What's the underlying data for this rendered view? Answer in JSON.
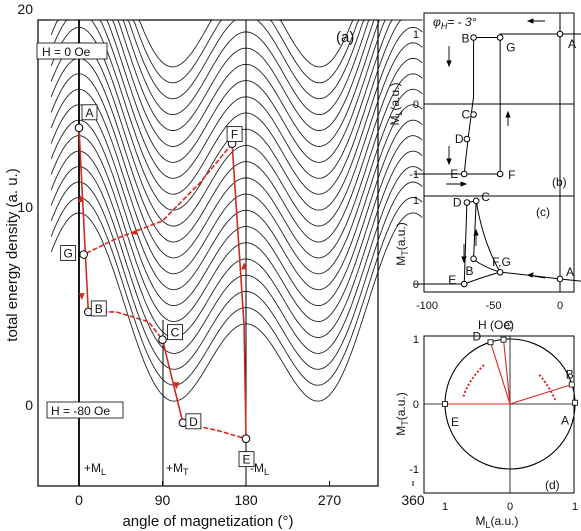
{
  "panel_a": {
    "tag": "(a)",
    "xlabel": "angle of magnetization (°)",
    "ylabel": "total energy density (a. u.)",
    "xticks": [
      "0",
      "90",
      "180",
      "270",
      "360"
    ],
    "yticks": [
      "0",
      "10",
      "20"
    ],
    "top_field_label": "H = 0 Oe",
    "bottom_field_label": "H = -80 Oe",
    "axis_marks": [
      "+M",
      "+M",
      "-M"
    ],
    "axis_mark_subs": [
      "L",
      "T",
      "L"
    ]
  },
  "panel_b": {
    "tag": "(b)",
    "angle_label": "φ",
    "angle_sub": "H",
    "angle_value": "= - 3°",
    "ylabel": "M",
    "ylabel_sub": "L",
    "ylabel_unit": "(a.u.)",
    "yticks": [
      "1",
      "0",
      "-1"
    ]
  },
  "panel_c": {
    "tag": "(c)",
    "ylabel": "M",
    "ylabel_sub": "T",
    "ylabel_unit": "(a.u.)",
    "yticks": [
      "1",
      "0"
    ],
    "xticks": [
      "-100",
      "-50",
      "0"
    ],
    "xlabel": "H (Oe)"
  },
  "panel_d": {
    "tag": "(d)",
    "ylabel": "M",
    "ylabel_sub": "T",
    "ylabel_unit": "(a.u.)",
    "xlabel": "M",
    "xlabel_sub": "L",
    "xlabel_unit": "(a.u.)",
    "yticks": [
      "1",
      "0",
      "-1"
    ],
    "xticks": [
      "1",
      "0",
      "1"
    ]
  },
  "colors": {
    "path": "#d42a1e",
    "curves": "#111111"
  },
  "chart_data": [
    {
      "type": "line",
      "title": "",
      "xlabel": "angle of magnetization (°)",
      "ylabel": "total energy density (a. u.)",
      "xlim": [
        -30,
        370
      ],
      "ylim": [
        -3.5,
        20
      ],
      "field_range_Oe": [
        0,
        -80
      ],
      "curve_count": 22,
      "curve_offset_step": 0.8,
      "points": [
        {
          "name": "A",
          "x": 0,
          "y": 14.0
        },
        {
          "name": "G",
          "x": 5,
          "y": 7.6
        },
        {
          "name": "B",
          "x": 10,
          "y": 4.7
        },
        {
          "name": "C",
          "x": 90,
          "y": 3.3
        },
        {
          "name": "D",
          "x": 112,
          "y": -0.9
        },
        {
          "name": "E",
          "x": 180,
          "y": -1.7
        },
        {
          "name": "F",
          "x": 165,
          "y": 13.2
        }
      ]
    },
    {
      "type": "line",
      "title": "",
      "xlabel": "H (Oe)",
      "ylabel": "M_L (a.u.)",
      "ylim": [
        -1.1,
        1.1
      ],
      "series": [
        {
          "x": [
            -110,
            -70,
            -65,
            -62,
            -50,
            -45,
            -45,
            0,
            25
          ],
          "y": [
            1,
            1,
            1,
            0.95,
            0.95,
            0.95,
            1,
            1,
            1
          ]
        }
      ],
      "points": [
        {
          "name": "A",
          "x": 0,
          "y": 1
        },
        {
          "name": "G",
          "x": -45,
          "y": 0.95
        },
        {
          "name": "B",
          "x": -65,
          "y": 0.95
        },
        {
          "name": "C",
          "x": -65,
          "y": -0.15
        },
        {
          "name": "D",
          "x": -70,
          "y": -0.5
        },
        {
          "name": "E",
          "x": -72,
          "y": -1
        },
        {
          "name": "F",
          "x": -45,
          "y": -1
        }
      ]
    },
    {
      "type": "line",
      "title": "",
      "xlabel": "H (Oe)",
      "ylabel": "M_T (a.u.)",
      "ylim": [
        -0.05,
        1.1
      ],
      "points": [
        {
          "name": "A",
          "x": 0,
          "y": 0.06
        },
        {
          "name": "B",
          "x": -65,
          "y": 0.3
        },
        {
          "name": "C",
          "x": -63,
          "y": 0.99
        },
        {
          "name": "D",
          "x": -70,
          "y": 0.97
        },
        {
          "name": "E",
          "x": -72,
          "y": 0
        },
        {
          "name": "F,G",
          "x": -45,
          "y": 0.14
        }
      ]
    },
    {
      "type": "scatter",
      "title": "",
      "xlabel": "M_L (a.u.)",
      "ylabel": "M_T (a.u.)",
      "xlim": [
        -1.1,
        1.1
      ],
      "ylim": [
        -1.1,
        1.1
      ],
      "points": [
        {
          "name": "A",
          "x": 1,
          "y": 0.02
        },
        {
          "name": "B",
          "x": 0.95,
          "y": 0.3
        },
        {
          "name": "C",
          "x": -0.1,
          "y": 0.99
        },
        {
          "name": "D",
          "x": -0.3,
          "y": 0.95
        },
        {
          "name": "E",
          "x": -1,
          "y": 0.0
        }
      ]
    }
  ]
}
